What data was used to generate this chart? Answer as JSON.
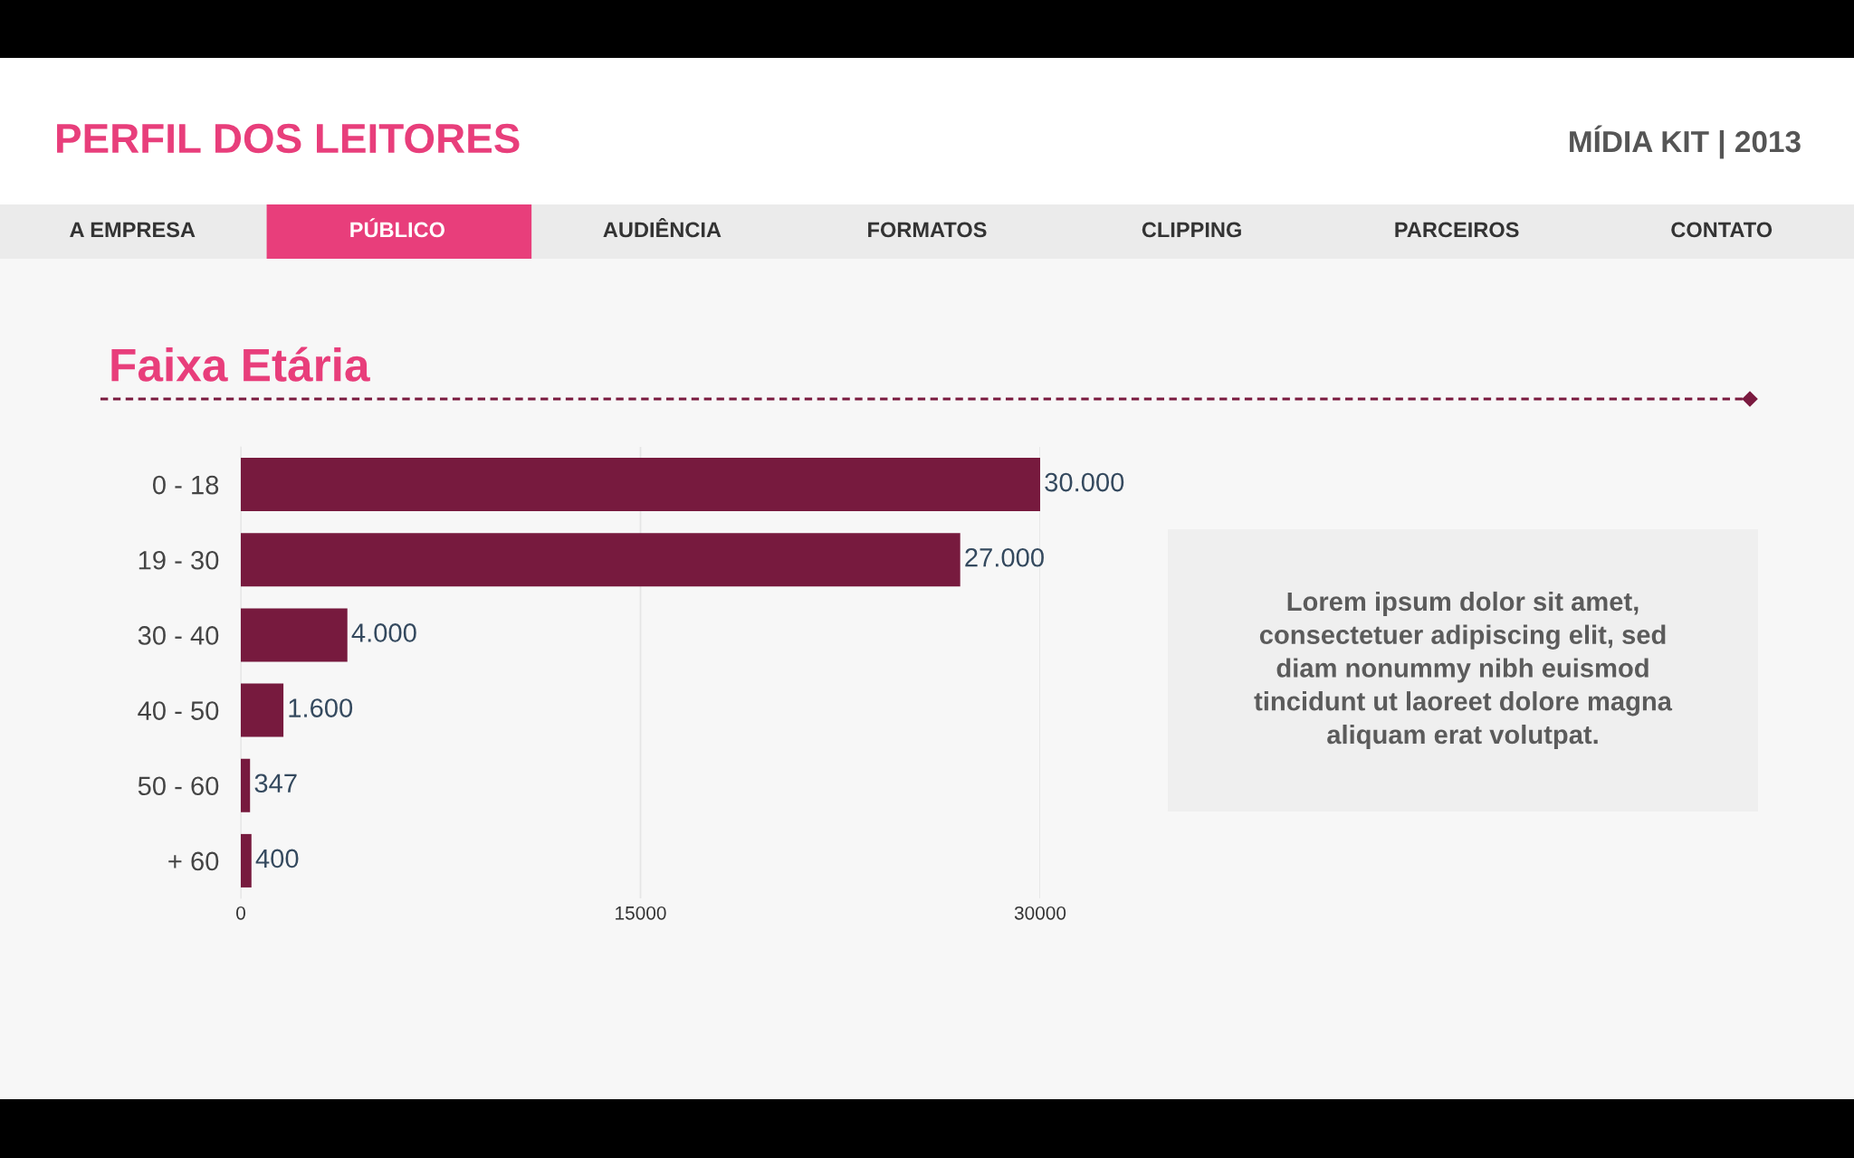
{
  "chart_data": {
    "type": "bar",
    "orientation": "horizontal",
    "title": "Faixa Etária",
    "categories": [
      "0 - 18",
      "19 - 30",
      "30 - 40",
      "40 - 50",
      "50 - 60",
      "+ 60"
    ],
    "values": [
      30000,
      27000,
      4000,
      1600,
      347,
      400
    ],
    "value_labels": [
      "30.000",
      "27.000",
      "4.000",
      "1.600",
      "347",
      "400"
    ],
    "color": "#771a3e",
    "xlim": [
      0,
      30000
    ],
    "xticks": [
      0,
      15000,
      30000
    ],
    "grid": "x",
    "annotations": [
      "PERFIL DOS LEITORES",
      "MÍDIA KIT | 2013",
      "A EMPRESA",
      "PÚBLICO",
      "AUDIÊNCIA",
      "FORMATOS",
      "CLIPPING",
      "PARCEIROS",
      "CONTATO",
      "Lorem ipsum dolor sit amet,\nconsectetuer adipiscing elit, sed\ndiam nonummy nibh euismod\ntincidunt ut laoreet dolore magna\naliquam erat volutpat."
    ]
  }
}
